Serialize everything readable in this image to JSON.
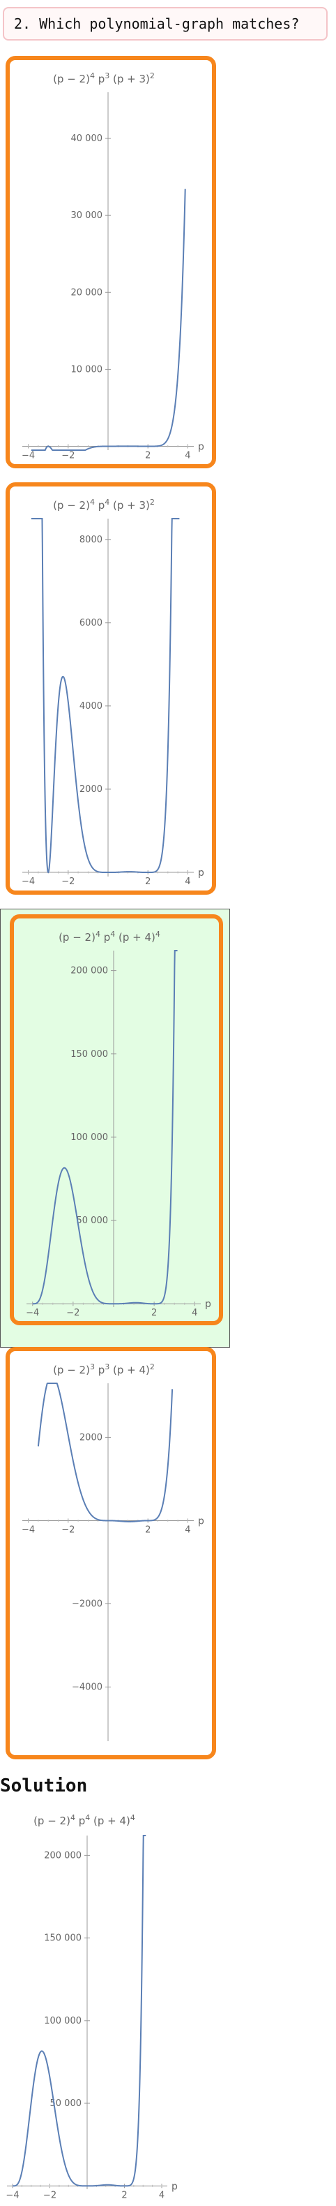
{
  "question": {
    "text": "2. Which polynomial-graph matches?"
  },
  "choices": [
    {
      "label_parts": {
        "f1": "(p − 2)",
        "e1": "4",
        "f2": " p",
        "e2": "3",
        "f3": " (p + 3)",
        "e3": "2"
      },
      "x_ticks": [
        "−4",
        "−2",
        "2",
        "4"
      ],
      "y_ticks": [
        "10 000",
        "20 000",
        "30 000",
        "40 000"
      ],
      "axis_label": "p",
      "selected": false
    },
    {
      "label_parts": {
        "f1": "(p − 2)",
        "e1": "4",
        "f2": " p",
        "e2": "4",
        "f3": " (p + 3)",
        "e3": "2"
      },
      "x_ticks": [
        "−4",
        "−2",
        "2",
        "4"
      ],
      "y_ticks": [
        "2000",
        "4000",
        "6000",
        "8000"
      ],
      "axis_label": "p",
      "selected": false
    },
    {
      "label_parts": {
        "f1": "(p − 2)",
        "e1": "4",
        "f2": " p",
        "e2": "4",
        "f3": " (p + 4)",
        "e3": "4"
      },
      "x_ticks": [
        "−4",
        "−2",
        "2",
        "4"
      ],
      "y_ticks": [
        "50 000",
        "100 000",
        "150 000",
        "200 000"
      ],
      "axis_label": "p",
      "selected": true
    },
    {
      "label_parts": {
        "f1": "(p − 2)",
        "e1": "3",
        "f2": " p",
        "e2": "3",
        "f3": " (p + 4)",
        "e3": "2"
      },
      "x_ticks": [
        "−4",
        "−2",
        "2",
        "4"
      ],
      "y_ticks": [
        "2000",
        "−2000",
        "−4000"
      ],
      "axis_label": "p",
      "selected": false
    }
  ],
  "solution": {
    "heading": "Solution",
    "label_parts": {
      "f1": "(p − 2)",
      "e1": "4",
      "f2": " p",
      "e2": "4",
      "f3": " (p + 4)",
      "e3": "4"
    },
    "x_ticks": [
      "−4",
      "−2",
      "2",
      "4"
    ],
    "y_ticks": [
      "50 000",
      "100 000",
      "150 000",
      "200 000"
    ],
    "axis_label": "p"
  },
  "colors": {
    "curve": "#5b7fb5",
    "border": "#f7861c",
    "selected_bg": "#e3fde3"
  }
}
